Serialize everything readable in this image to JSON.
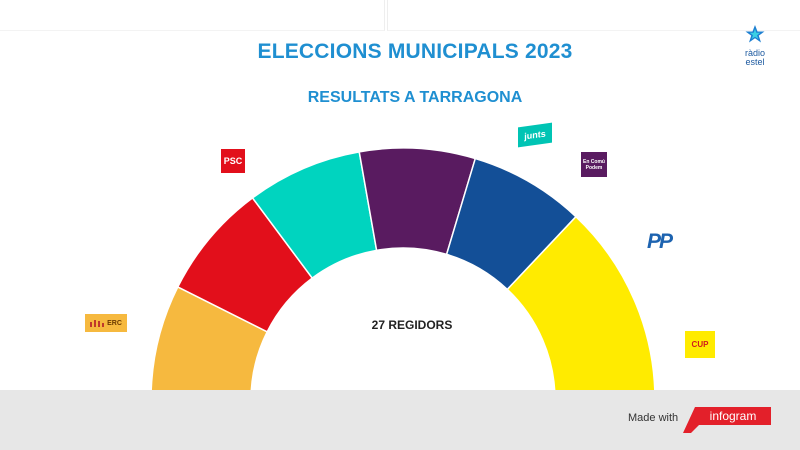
{
  "header": {
    "title": "ELECCIONS MUNICIPALS 2023",
    "subtitle": "RESULTATS A TARRAGONA",
    "station_logo_text_1": "ràdio",
    "station_logo_text_2": "estel"
  },
  "center_label": "27 REGIDORS",
  "footer": {
    "made_with": "Made with",
    "brand": "infogram"
  },
  "chart_data": {
    "type": "parliament-semicircle",
    "title": "ELECCIONS MUNICIPALS 2023",
    "subtitle": "RESULTATS A TARRAGONA",
    "total_seats": 27,
    "series": [
      {
        "name": "ERC",
        "logo_text": "ERC",
        "value": 4,
        "color": "#f6b93f"
      },
      {
        "name": "PSC",
        "logo_text": "PSC",
        "value": 4,
        "color": "#e20f1b"
      },
      {
        "name": "",
        "logo_text": "",
        "value": 4,
        "color": "#00d4bf"
      },
      {
        "name": "Junts",
        "logo_text": "junts",
        "value": 4,
        "color": "#591b60"
      },
      {
        "name": "En Comú Podem",
        "logo_text": "En Comú Podem",
        "value": 4,
        "color": "#134f97"
      },
      {
        "name": "PP",
        "logo_text": "PP",
        "value": 0,
        "color": "#1d63b0"
      },
      {
        "name": "CUP",
        "logo_text": "CUP",
        "value": 7,
        "color": "#ffeb00"
      }
    ]
  }
}
